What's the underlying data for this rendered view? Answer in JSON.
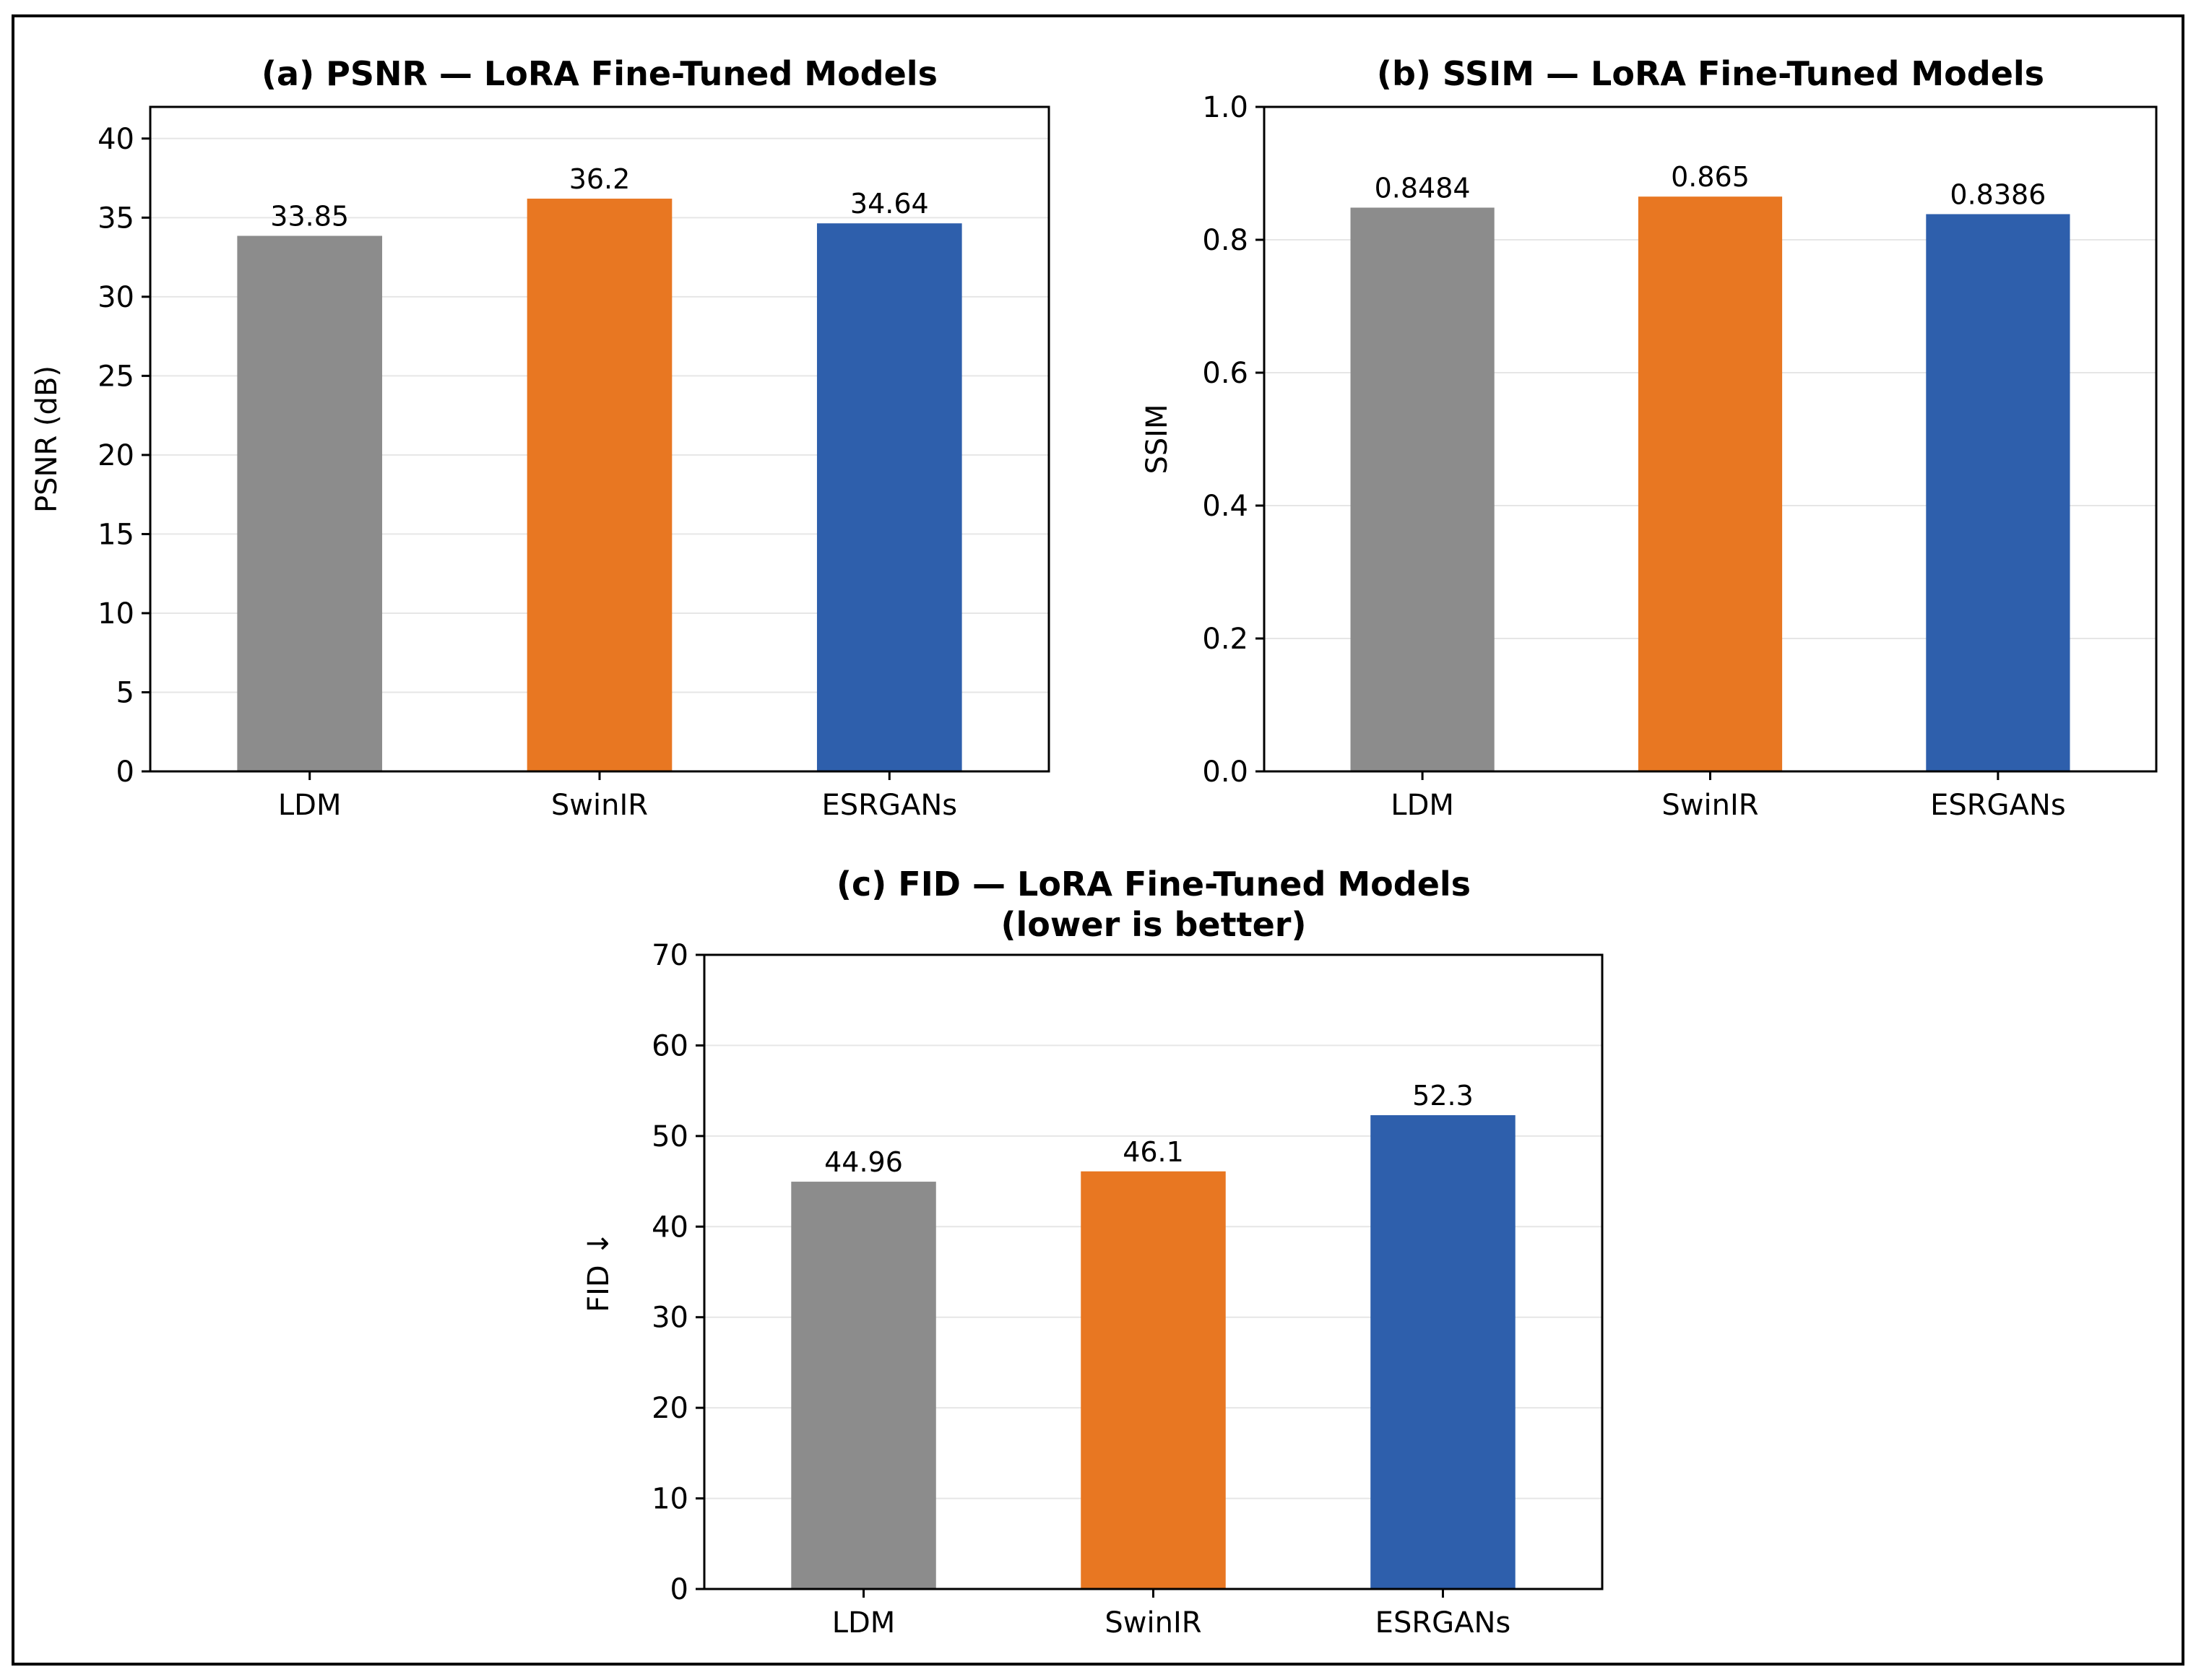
{
  "chart_data": [
    {
      "type": "bar",
      "title": "(a) PSNR — LoRA Fine-Tuned Models",
      "title_line2": "",
      "xlabel": "",
      "ylabel": "PSNR (dB)",
      "categories": [
        "LDM",
        "SwinIR",
        "ESRGANs"
      ],
      "values": [
        33.85,
        36.2,
        34.64
      ],
      "value_labels": [
        "33.85",
        "36.2",
        "34.64"
      ],
      "ylim": [
        0,
        42
      ],
      "yticks": [
        0,
        5,
        10,
        15,
        20,
        25,
        30,
        35,
        40
      ],
      "ytick_labels": [
        "0",
        "5",
        "10",
        "15",
        "20",
        "25",
        "30",
        "35",
        "40"
      ],
      "grid": "horizontal",
      "colors": [
        "#8c8c8c",
        "#e87722",
        "#2e5fac"
      ]
    },
    {
      "type": "bar",
      "title": "(b) SSIM — LoRA Fine-Tuned Models",
      "title_line2": "",
      "xlabel": "",
      "ylabel": "SSIM",
      "categories": [
        "LDM",
        "SwinIR",
        "ESRGANs"
      ],
      "values": [
        0.8484,
        0.865,
        0.8386
      ],
      "value_labels": [
        "0.8484",
        "0.865",
        "0.8386"
      ],
      "ylim": [
        0,
        1.0
      ],
      "yticks": [
        0,
        0.2,
        0.4,
        0.6,
        0.8,
        1.0
      ],
      "ytick_labels": [
        "0.0",
        "0.2",
        "0.4",
        "0.6",
        "0.8",
        "1.0"
      ],
      "grid": "horizontal",
      "colors": [
        "#8c8c8c",
        "#e87722",
        "#2e5fac"
      ]
    },
    {
      "type": "bar",
      "title": "(c) FID — LoRA Fine-Tuned Models",
      "title_line2": "(lower is better)",
      "xlabel": "",
      "ylabel": "FID ↓",
      "categories": [
        "LDM",
        "SwinIR",
        "ESRGANs"
      ],
      "values": [
        44.96,
        46.1,
        52.3
      ],
      "value_labels": [
        "44.96",
        "46.1",
        "52.3"
      ],
      "ylim": [
        0,
        70
      ],
      "yticks": [
        0,
        10,
        20,
        30,
        40,
        50,
        60,
        70
      ],
      "ytick_labels": [
        "0",
        "10",
        "20",
        "30",
        "40",
        "50",
        "60",
        "70"
      ],
      "grid": "horizontal",
      "colors": [
        "#8c8c8c",
        "#e87722",
        "#2e5fac"
      ]
    }
  ]
}
